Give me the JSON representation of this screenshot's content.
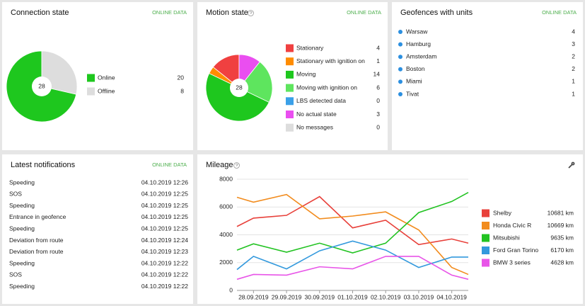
{
  "panels": {
    "connection": {
      "title": "Connection state",
      "badge": "ONLINE DATA",
      "chart_data": {
        "type": "pie",
        "total": 28,
        "categories": [
          "Online",
          "Offline"
        ],
        "values": [
          20,
          8
        ],
        "colors": [
          "#1ec71e",
          "#dddddd"
        ]
      }
    },
    "motion": {
      "title": "Motion state",
      "badge": "ONLINE DATA",
      "chart_data": {
        "type": "pie",
        "total": 28,
        "categories": [
          "Stationary",
          "Stationary with ignition on",
          "Moving",
          "Moving with ignition on",
          "LBS detected data",
          "No actual state",
          "No messages"
        ],
        "values": [
          4,
          1,
          14,
          6,
          0,
          3,
          0
        ],
        "colors": [
          "#f04040",
          "#ff8c00",
          "#1ec71e",
          "#5ee55e",
          "#3aa0e8",
          "#ea4ef0",
          "#dddddd"
        ]
      }
    },
    "geofences": {
      "title": "Geofences with units",
      "badge": "ONLINE DATA",
      "items": [
        {
          "name": "Warsaw",
          "count": 4
        },
        {
          "name": "Hamburg",
          "count": 3
        },
        {
          "name": "Amsterdam",
          "count": 2
        },
        {
          "name": "Boston",
          "count": 2
        },
        {
          "name": "Miami",
          "count": 1
        },
        {
          "name": "Tivat",
          "count": 1
        }
      ]
    },
    "notifications": {
      "title": "Latest notifications",
      "badge": "ONLINE DATA",
      "rows": [
        [
          "Speeding",
          "04.10.2019 12:26"
        ],
        [
          "SOS",
          "04.10.2019 12:25"
        ],
        [
          "Speeding",
          "04.10.2019 12:25"
        ],
        [
          "Entrance in geofence",
          "04.10.2019 12:25"
        ],
        [
          "Speeding",
          "04.10.2019 12:25"
        ],
        [
          "Deviation from route",
          "04.10.2019 12:24"
        ],
        [
          "Deviation from route",
          "04.10.2019 12:23"
        ],
        [
          "Speeding",
          "04.10.2019 12:22"
        ],
        [
          "SOS",
          "04.10.2019 12:22"
        ],
        [
          "Speeding",
          "04.10.2019 12:22"
        ]
      ]
    },
    "mileage": {
      "title": "Mileage",
      "chart_data": {
        "type": "line",
        "x": [
          -0.5,
          0,
          1,
          2,
          3,
          4,
          5,
          6,
          6.5
        ],
        "xlim": [
          -0.5,
          6.5
        ],
        "xticks": [
          {
            "value": 0,
            "label": "28.09.2019"
          },
          {
            "value": 1,
            "label": "29.09.2019"
          },
          {
            "value": 2,
            "label": "30.09.2019"
          },
          {
            "value": 3,
            "label": "01.10.2019"
          },
          {
            "value": 4,
            "label": "02.10.2019"
          },
          {
            "value": 5,
            "label": "03.10.2019"
          },
          {
            "value": 6,
            "label": "04.10.2019"
          }
        ],
        "ylim": [
          0,
          8000
        ],
        "yticks": [
          0,
          2000,
          4000,
          6000,
          8000
        ],
        "grid": true,
        "series": [
          {
            "name": "Shelby",
            "color": "#e8413b",
            "values": [
              4600,
              5200,
              5400,
              6750,
              4500,
              5050,
              3300,
              3700,
              3400
            ],
            "total": 10681,
            "total_label": "10681 km"
          },
          {
            "name": "Honda Civic R",
            "color": "#f28c1e",
            "values": [
              6700,
              6350,
              6900,
              5150,
              5350,
              5650,
              4350,
              1650,
              1150
            ],
            "total": 10669,
            "total_label": "10669 km"
          },
          {
            "name": "Mitsubishi",
            "color": "#22c322",
            "values": [
              2900,
              3350,
              2750,
              3400,
              2700,
              3400,
              5600,
              6400,
              7050
            ],
            "total": 9635,
            "total_label": "9635 km"
          },
          {
            "name": "Ford Gran Torino",
            "color": "#3399dd",
            "values": [
              1500,
              2450,
              1550,
              2850,
              3550,
              2900,
              1650,
              2400,
              2400
            ],
            "total": 6170,
            "total_label": "6170 km"
          },
          {
            "name": "BMW 3 series",
            "color": "#e855e8",
            "values": [
              800,
              1150,
              1100,
              1700,
              1550,
              2450,
              2450,
              1100,
              800
            ],
            "total": 4628,
            "total_label": "4628 km"
          }
        ]
      }
    }
  }
}
